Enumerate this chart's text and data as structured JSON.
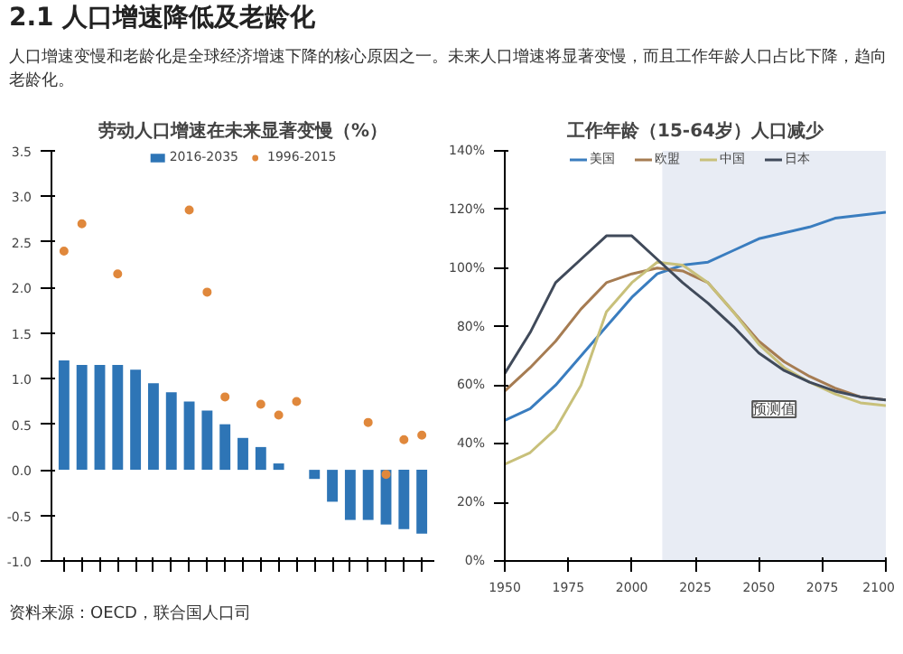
{
  "chart_data": [
    {
      "type": "bar",
      "title": "劳动人口增速在未来显著变慢（%）",
      "annotations": [
        "2.1 人口增速降低及老龄化",
        "人口增速变慢和老龄化是全球经济增速下降的核心原因之一。未来人口增速将显著变慢，而且工作年龄人口占比下降，趋向老龄化。"
      ],
      "categories": [
        null,
        null,
        null,
        null,
        null,
        null,
        null,
        null,
        null,
        null,
        null,
        null,
        null,
        null,
        null,
        null,
        null,
        null,
        null,
        null,
        null
      ],
      "series": [
        {
          "name": "2016-2035",
          "color": "#2e75b6",
          "values": [
            1.2,
            1.15,
            1.15,
            1.15,
            1.1,
            0.95,
            0.85,
            0.75,
            0.65,
            0.5,
            0.35,
            0.25,
            0.07,
            0.0,
            -0.1,
            -0.35,
            -0.55,
            -0.55,
            -0.6,
            -0.65,
            -0.7
          ]
        },
        {
          "name": "1996-2015",
          "type": "scatter",
          "color": "#e0883c",
          "values": [
            2.4,
            2.7,
            null,
            2.15,
            null,
            null,
            null,
            2.85,
            1.95,
            0.8,
            null,
            0.72,
            0.6,
            0.75,
            null,
            null,
            null,
            0.52,
            -0.05,
            0.33,
            0.38
          ]
        }
      ],
      "ylim": [
        -1.0,
        3.5
      ],
      "yticks": [
        {
          "value": -1.0,
          "label": "-1.0"
        },
        {
          "value": -0.5,
          "label": "-0.5"
        },
        {
          "value": 0,
          "label": "0.0"
        },
        {
          "value": 0.5,
          "label": "0.5"
        },
        {
          "value": 1.0,
          "label": "1.0"
        },
        {
          "value": 1.5,
          "label": "1.5"
        },
        {
          "value": 2.0,
          "label": "2.0"
        },
        {
          "value": 2.5,
          "label": "2.5"
        },
        {
          "value": 3.0,
          "label": "3.0"
        },
        {
          "value": 3.5,
          "label": "3.5"
        }
      ],
      "legend": "top",
      "marker": "circle",
      "grid": false
    },
    {
      "type": "line",
      "title": "工作年龄（15-64岁）人口减少",
      "annotations": [
        "资料来源：OECD，联合国人口司"
      ],
      "x": [
        1950,
        1960,
        1970,
        1980,
        1990,
        2000,
        2010,
        2020,
        2030,
        2040,
        2050,
        2060,
        2070,
        2080,
        2090,
        2100
      ],
      "series": [
        {
          "name": "美国",
          "color": "#3a7dbf",
          "values": [
            48,
            52,
            60,
            70,
            80,
            90,
            98,
            101,
            102,
            106,
            110,
            112,
            114,
            117,
            118,
            119
          ]
        },
        {
          "name": "欧盟",
          "color": "#a67c52",
          "values": [
            58,
            66,
            75,
            86,
            95,
            98,
            100,
            99,
            95,
            85,
            75,
            68,
            63,
            59,
            56,
            55
          ]
        },
        {
          "name": "中国",
          "color": "#c8c07a",
          "values": [
            33,
            37,
            45,
            60,
            85,
            95,
            102,
            101,
            95,
            85,
            74,
            66,
            61,
            57,
            54,
            53
          ]
        },
        {
          "name": "日本",
          "color": "#404a5a",
          "values": [
            64,
            78,
            95,
            103,
            111,
            111,
            103,
            95,
            88,
            80,
            71,
            65,
            61,
            58,
            56,
            55
          ]
        }
      ],
      "bands": [
        {
          "axis": "x",
          "from": 2012,
          "to": 2100,
          "label": "预测值",
          "color": "#e8ecf4"
        }
      ],
      "xlim": [
        1950,
        2100
      ],
      "xticks": [
        1950,
        1975,
        2000,
        2025,
        2050,
        2075,
        2100
      ],
      "ylim": [
        0,
        140
      ],
      "yticks": [
        {
          "value": 0,
          "label": "0%"
        },
        {
          "value": 20,
          "label": "20%"
        },
        {
          "value": 40,
          "label": "40%"
        },
        {
          "value": 60,
          "label": "60%"
        },
        {
          "value": 80,
          "label": "80%"
        },
        {
          "value": 100,
          "label": "100%"
        },
        {
          "value": 120,
          "label": "120%"
        },
        {
          "value": 140,
          "label": "140%"
        }
      ],
      "legend": "top",
      "grid": false
    }
  ]
}
